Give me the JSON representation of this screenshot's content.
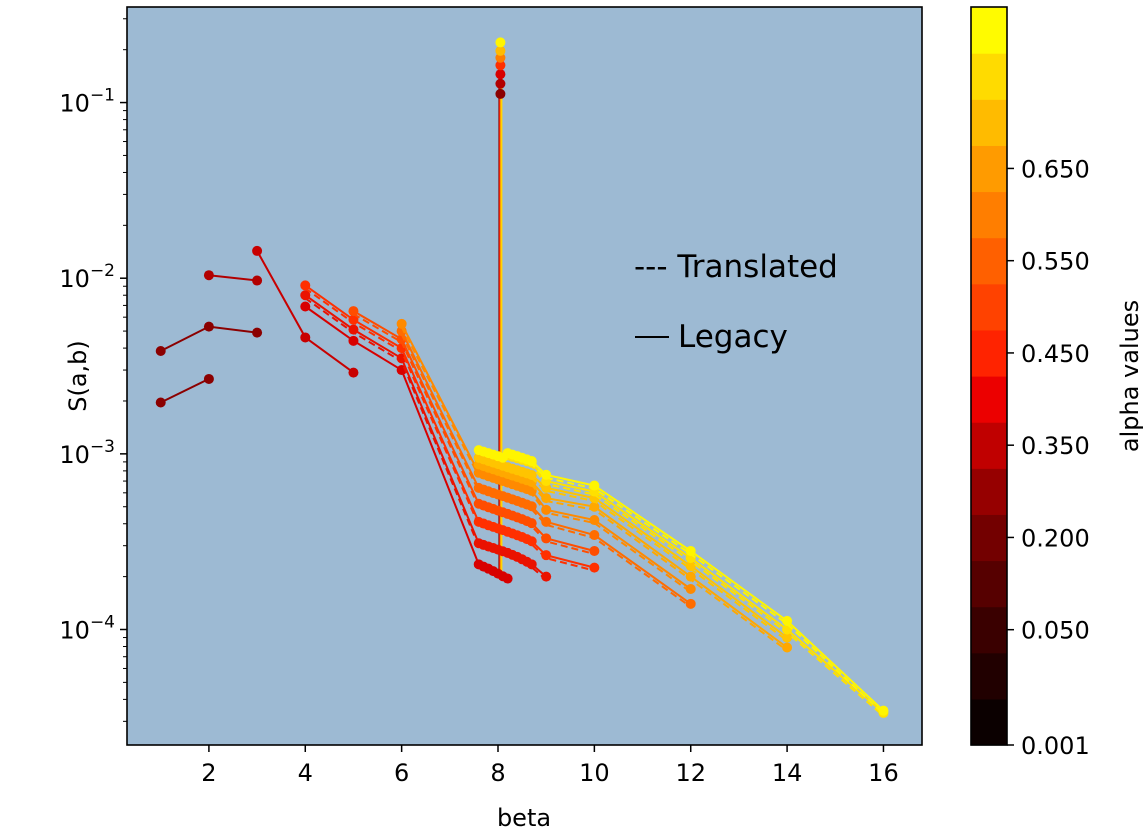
{
  "chart_data": {
    "type": "line",
    "xlabel": "beta",
    "ylabel": "S(a,b)",
    "yscale": "log",
    "xlim": [
      0.3,
      16.8
    ],
    "ylim": [
      2.2e-05,
      0.35
    ],
    "x_ticks": [
      2,
      4,
      6,
      8,
      10,
      12,
      14,
      16
    ],
    "y_ticks": [
      {
        "value": 0.1,
        "base": "10",
        "exp": "−1"
      },
      {
        "value": 0.01,
        "base": "10",
        "exp": "−2"
      },
      {
        "value": 0.001,
        "base": "10",
        "exp": "−3"
      },
      {
        "value": 0.0001,
        "base": "10",
        "exp": "−4"
      }
    ],
    "background": "#9dbad3",
    "grid": false,
    "legend_position": "upper-right-inside",
    "legend": [
      {
        "style": "dashed",
        "label": "--- Translated"
      },
      {
        "style": "solid",
        "label": "Legacy"
      }
    ],
    "colorbar": {
      "label": "alpha values",
      "tick_labels": [
        "0.001",
        "0.050",
        "0.200",
        "0.350",
        "0.450",
        "0.550",
        "0.650"
      ],
      "colors": [
        "#0b0000",
        "#210000",
        "#3a0000",
        "#560000",
        "#730000",
        "#960000",
        "#c00000",
        "#ec0000",
        "#ff2300",
        "#ff4200",
        "#ff6000",
        "#ff7e00",
        "#ff9b00",
        "#ffbb00",
        "#ffdb00",
        "#fffb00"
      ]
    },
    "spike": {
      "x": 8.05,
      "y_top": 0.22,
      "y_bottom": 0.0002
    },
    "series": [
      {
        "color": "#8b0000",
        "x": [
          1,
          2
        ],
        "y": [
          0.00196,
          0.00267
        ]
      },
      {
        "color": "#8b0000",
        "x": [
          1,
          2,
          3
        ],
        "y": [
          0.00385,
          0.0053,
          0.0049
        ]
      },
      {
        "color": "#b20000",
        "x": [
          2,
          3
        ],
        "y": [
          0.0104,
          0.0097
        ]
      },
      {
        "color": "#c80000",
        "x": [
          3,
          4,
          5
        ],
        "y": [
          0.0143,
          0.0046,
          0.0029
        ]
      },
      {
        "color": "#d80000",
        "x": [
          4,
          5,
          6,
          7.6,
          7.7,
          7.8,
          7.9,
          8.0,
          8.1,
          8.2
        ],
        "y": [
          0.0069,
          0.0044,
          0.003,
          0.000235,
          0.000228,
          0.000222,
          0.000215,
          0.000208,
          0.000201,
          0.000195
        ]
      },
      {
        "color": "#ea1200",
        "x": [
          4,
          5,
          6,
          7.6,
          7.7,
          7.8,
          7.9,
          8.0,
          8.1,
          8.2,
          8.3,
          8.4,
          8.5,
          8.6,
          8.7,
          9
        ],
        "y": [
          0.008,
          0.0051,
          0.0035,
          0.00031,
          0.000303,
          0.000297,
          0.000291,
          0.000285,
          0.000279,
          0.000273,
          0.000266,
          0.000259,
          0.000251,
          0.000243,
          0.000235,
          0.0002
        ]
      },
      {
        "color": "#ff3000",
        "x": [
          4,
          5,
          6,
          7.6,
          7.7,
          7.8,
          7.9,
          8.0,
          8.1,
          8.2,
          8.3,
          8.4,
          8.5,
          8.6,
          8.7,
          9,
          10
        ],
        "y": [
          0.0091,
          0.0058,
          0.004,
          0.00041,
          0.000401,
          0.000392,
          0.000384,
          0.000376,
          0.000368,
          0.00036,
          0.000352,
          0.000344,
          0.000336,
          0.000327,
          0.000318,
          0.000265,
          0.000225
        ]
      },
      {
        "color": "#ff4d00",
        "x": [
          5,
          6,
          7.6,
          7.7,
          7.8,
          7.9,
          8.0,
          8.1,
          8.2,
          8.3,
          8.4,
          8.5,
          8.6,
          8.7,
          9,
          10
        ],
        "y": [
          0.0065,
          0.0045,
          0.00052,
          0.000508,
          0.000497,
          0.000486,
          0.000475,
          0.000465,
          0.000455,
          0.000445,
          0.000435,
          0.000425,
          0.000414,
          0.000403,
          0.00033,
          0.00028
        ]
      },
      {
        "color": "#ff6c00",
        "x": [
          6,
          7.6,
          7.7,
          7.8,
          7.9,
          8.0,
          8.1,
          8.2,
          8.3,
          8.4,
          8.5,
          8.6,
          8.7,
          9,
          10,
          12
        ],
        "y": [
          0.005,
          0.00064,
          0.000626,
          0.000612,
          0.000599,
          0.000587,
          0.000575,
          0.000563,
          0.000551,
          0.000539,
          0.000527,
          0.000515,
          0.000503,
          0.00041,
          0.000345,
          0.00014
        ]
      },
      {
        "color": "#ff8a00",
        "x": [
          6,
          7.6,
          7.7,
          7.8,
          7.9,
          8.0,
          8.1,
          8.2,
          8.3,
          8.4,
          8.5,
          8.6,
          8.7,
          9,
          10,
          12
        ],
        "y": [
          0.0055,
          0.00078,
          0.000763,
          0.000746,
          0.00073,
          0.000715,
          0.0007,
          0.000686,
          0.000672,
          0.000658,
          0.000644,
          0.00063,
          0.000616,
          0.00048,
          0.00042,
          0.00017
        ]
      },
      {
        "color": "#ffa800",
        "x": [
          7.6,
          7.7,
          7.8,
          7.9,
          8.0,
          8.1,
          8.2,
          8.3,
          8.4,
          8.5,
          8.6,
          8.7,
          9,
          10,
          12,
          14
        ],
        "y": [
          0.00087,
          0.000852,
          0.000834,
          0.000817,
          0.0008,
          0.000784,
          0.000768,
          0.000752,
          0.000737,
          0.000722,
          0.000707,
          0.000692,
          0.00056,
          0.0005,
          0.0002,
          7.9e-05
        ]
      },
      {
        "color": "#ffc400",
        "x": [
          7.6,
          7.7,
          7.8,
          7.9,
          8.0,
          8.1,
          8.2,
          8.3,
          8.4,
          8.5,
          8.6,
          8.7,
          9,
          10,
          12,
          14
        ],
        "y": [
          0.00095,
          0.00093,
          0.000911,
          0.000892,
          0.000874,
          0.000856,
          0.000839,
          0.000822,
          0.000806,
          0.00079,
          0.000774,
          0.000758,
          0.00064,
          0.00056,
          0.00023,
          9e-05
        ]
      },
      {
        "color": "#ffe000",
        "x": [
          8.2,
          8.3,
          8.4,
          8.5,
          8.6,
          8.7,
          9,
          10,
          12,
          14,
          16
        ],
        "y": [
          0.00098,
          0.000962,
          0.000944,
          0.000926,
          0.000908,
          0.00089,
          0.0007,
          0.00061,
          0.000255,
          0.0001,
          3.35e-05
        ]
      },
      {
        "color": "#fff500",
        "x": [
          7.6,
          7.7,
          7.8,
          7.9,
          8.0,
          8.1,
          8.2,
          8.3,
          8.4,
          8.5,
          8.6,
          8.7,
          9,
          10,
          12,
          14,
          16
        ],
        "y": [
          0.00105,
          0.00103,
          0.00101,
          0.00099,
          0.00097,
          0.00095,
          0.00101,
          0.00099,
          0.00097,
          0.00095,
          0.00093,
          0.00091,
          0.00076,
          0.00066,
          0.00028,
          0.000112,
          3.45e-05
        ]
      }
    ]
  }
}
